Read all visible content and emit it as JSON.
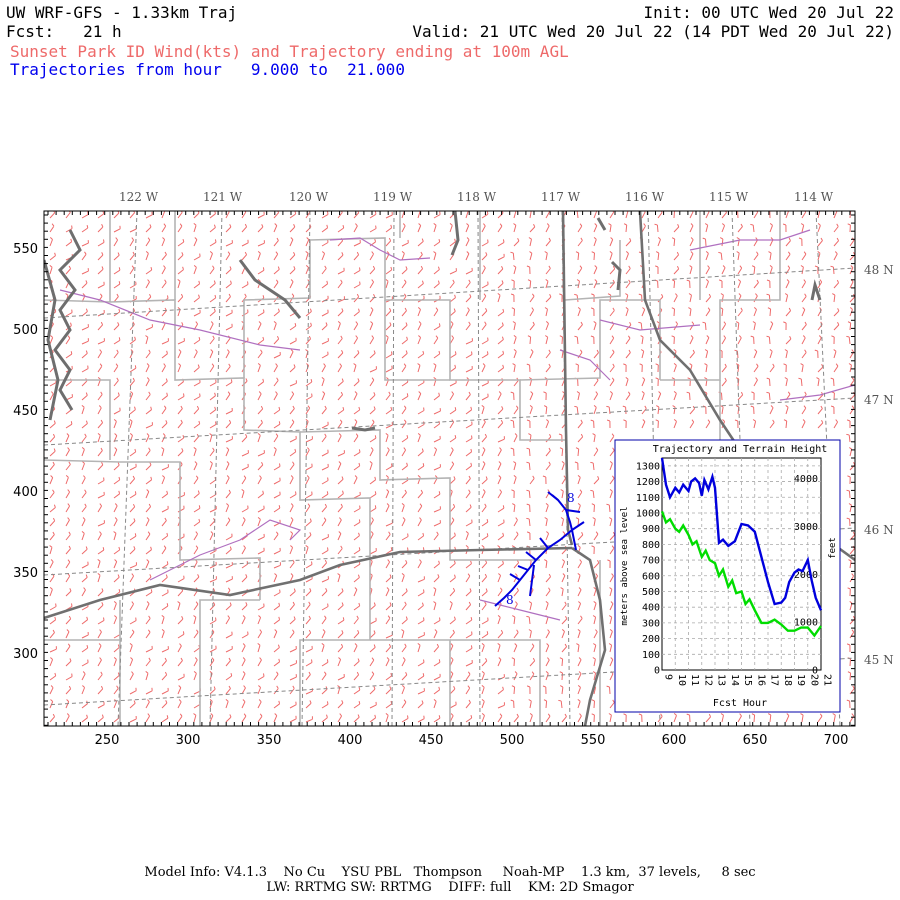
{
  "header": {
    "title": "UW WRF-GFS - 1.33km Traj",
    "init": "Init: 00 UTC Wed 20 Jul 22",
    "fcst": "Fcst:   21 h",
    "valid": "Valid: 21 UTC Wed 20 Jul 22 (14 PDT Wed 20 Jul 22)",
    "subtitle": "Sunset Park ID Wind(kts) and Trajectory ending at 100m AGL",
    "traj_range": "Trajectories from hour   9.000 to  21.000"
  },
  "map": {
    "lon_labels": [
      "122 W",
      "121 W",
      "120 W",
      "119 W",
      "118 W",
      "117 W",
      "116 W",
      "115 W",
      "114 W"
    ],
    "lat_labels": [
      "48 N",
      "47 N",
      "46 N",
      "45 N"
    ],
    "x_ticks": [
      "250",
      "300",
      "350",
      "400",
      "450",
      "500",
      "550",
      "600",
      "650",
      "700"
    ],
    "y_ticks": [
      "550",
      "500",
      "450",
      "400",
      "350",
      "300"
    ],
    "trajectory_labels": [
      "8",
      "8"
    ],
    "colors": {
      "wind_barbs": "#ee6a6a",
      "trajectory": "#0000dd",
      "counties": "#b4b4b4",
      "state": "#707070",
      "water": "#6e6e6e",
      "rivers": "#b070c0"
    }
  },
  "inset": {
    "title": "Trajectory and Terrain Height",
    "ylabel_left": "meters above sea level",
    "ylabel_right": "feet",
    "xlabel": "Fcst Hour",
    "y_ticks": [
      "1300",
      "1200",
      "1100",
      "1000",
      "900",
      "800",
      "700",
      "600",
      "500",
      "400",
      "300",
      "200",
      "100",
      "0"
    ],
    "feet_ticks": [
      "4000",
      "3000",
      "2000",
      "1000",
      "0"
    ],
    "x_ticks": [
      "9",
      "10",
      "11",
      "12",
      "13",
      "14",
      "15",
      "16",
      "17",
      "18",
      "19",
      "20",
      "21"
    ]
  },
  "chart_data": {
    "type": "line",
    "title": "Trajectory and Terrain Height",
    "xlabel": "Fcst Hour",
    "ylabel": "meters above sea level",
    "xlim": [
      9,
      21
    ],
    "ylim": [
      0,
      1350
    ],
    "series": [
      {
        "name": "trajectory",
        "color": "#0000dd",
        "x": [
          9,
          9.3,
          9.6,
          10,
          10.3,
          10.6,
          11,
          11.2,
          11.5,
          11.8,
          12,
          12.2,
          12.5,
          12.8,
          13,
          13.3,
          13.6,
          14,
          14.5,
          15,
          15.5,
          16,
          16.5,
          17,
          17.5,
          18,
          18.3,
          18.6,
          19,
          19.3,
          19.6,
          20,
          20.3,
          20.6,
          21
        ],
        "y": [
          1350,
          1180,
          1100,
          1160,
          1130,
          1180,
          1140,
          1200,
          1220,
          1190,
          1110,
          1210,
          1150,
          1230,
          1160,
          810,
          830,
          790,
          820,
          930,
          920,
          880,
          720,
          560,
          420,
          430,
          460,
          560,
          620,
          640,
          630,
          700,
          570,
          460,
          380
        ]
      },
      {
        "name": "terrain",
        "color": "#00dd00",
        "x": [
          9,
          9.3,
          9.6,
          10,
          10.3,
          10.6,
          11,
          11.3,
          11.6,
          12,
          12.3,
          12.6,
          13,
          13.3,
          13.6,
          14,
          14.3,
          14.6,
          15,
          15.3,
          15.6,
          16,
          16.5,
          17,
          17.5,
          18,
          18.5,
          19,
          19.5,
          20,
          20.5,
          21
        ],
        "y": [
          1010,
          940,
          960,
          900,
          880,
          920,
          860,
          800,
          820,
          720,
          760,
          700,
          680,
          600,
          640,
          530,
          570,
          490,
          500,
          420,
          450,
          380,
          300,
          300,
          320,
          290,
          250,
          250,
          270,
          270,
          220,
          280
        ]
      }
    ]
  },
  "footer": {
    "line1": "Model Info: V4.1.3    No Cu    YSU PBL   Thompson     Noah-MP    1.3 km,  37 levels,     8 sec",
    "line2": "LW: RRTMG SW: RRTMG    DIFF: full    KM: 2D Smagor"
  }
}
